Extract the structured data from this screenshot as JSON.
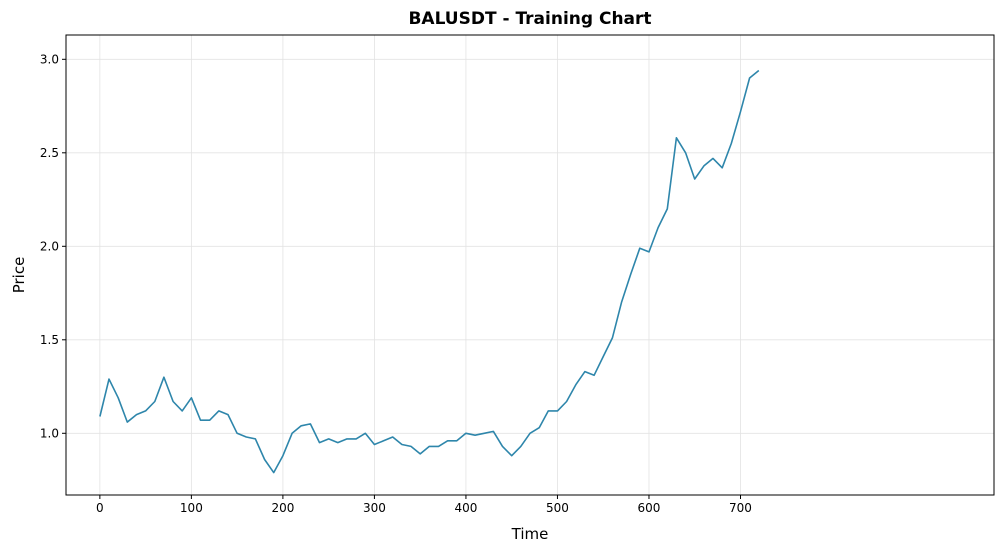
{
  "chart_data": {
    "type": "line",
    "title": "BALUSDT - Training Chart",
    "xlabel": "Time",
    "ylabel": "Price",
    "xlim": [
      -37,
      977
    ],
    "ylim": [
      0.67,
      3.13
    ],
    "grid": true,
    "line_color": "#2e86ab",
    "xticks": [
      0,
      100,
      200,
      300,
      400,
      500,
      600,
      700
    ],
    "xtick_labels": [
      "0",
      "100",
      "200",
      "300",
      "400",
      "500",
      "600",
      "700"
    ],
    "yticks": [
      1.0,
      1.5,
      2.0,
      2.5,
      3.0
    ],
    "ytick_labels": [
      "1.0",
      "1.5",
      "2.0",
      "2.5",
      "3.0"
    ],
    "series": [
      {
        "x": [
          0,
          10,
          20,
          30,
          40,
          50,
          60,
          70,
          80,
          90,
          100,
          110,
          120,
          130,
          140,
          150,
          160,
          170,
          180,
          190,
          200,
          210,
          220,
          230,
          240,
          250,
          260,
          270,
          280,
          290,
          300,
          310,
          320,
          330,
          340,
          350,
          360,
          370,
          380,
          390,
          400,
          410,
          420,
          430,
          440,
          450,
          460,
          470,
          480,
          490,
          500,
          510,
          520,
          530,
          540,
          550,
          560,
          570,
          580,
          590,
          600,
          610,
          620,
          630,
          640,
          650,
          660,
          670,
          680,
          690,
          700,
          710,
          720
        ],
        "y": [
          1.09,
          1.29,
          1.19,
          1.06,
          1.1,
          1.12,
          1.17,
          1.3,
          1.17,
          1.12,
          1.19,
          1.07,
          1.07,
          1.12,
          1.1,
          1.0,
          0.98,
          0.97,
          0.86,
          0.79,
          0.88,
          1.0,
          1.04,
          1.05,
          0.95,
          0.97,
          0.95,
          0.97,
          0.97,
          1.0,
          0.94,
          0.96,
          0.98,
          0.94,
          0.93,
          0.89,
          0.93,
          0.93,
          0.96,
          0.96,
          1.0,
          0.99,
          1.0,
          1.01,
          0.93,
          0.88,
          0.93,
          1.0,
          1.03,
          1.12,
          1.12,
          1.17,
          1.26,
          1.33,
          1.31,
          1.41,
          1.51,
          1.7,
          1.85,
          1.99,
          1.97,
          2.1,
          2.2,
          2.58,
          2.5,
          2.36,
          2.43,
          2.47,
          2.42,
          2.55,
          2.72,
          2.9,
          2.94
        ]
      }
    ]
  }
}
